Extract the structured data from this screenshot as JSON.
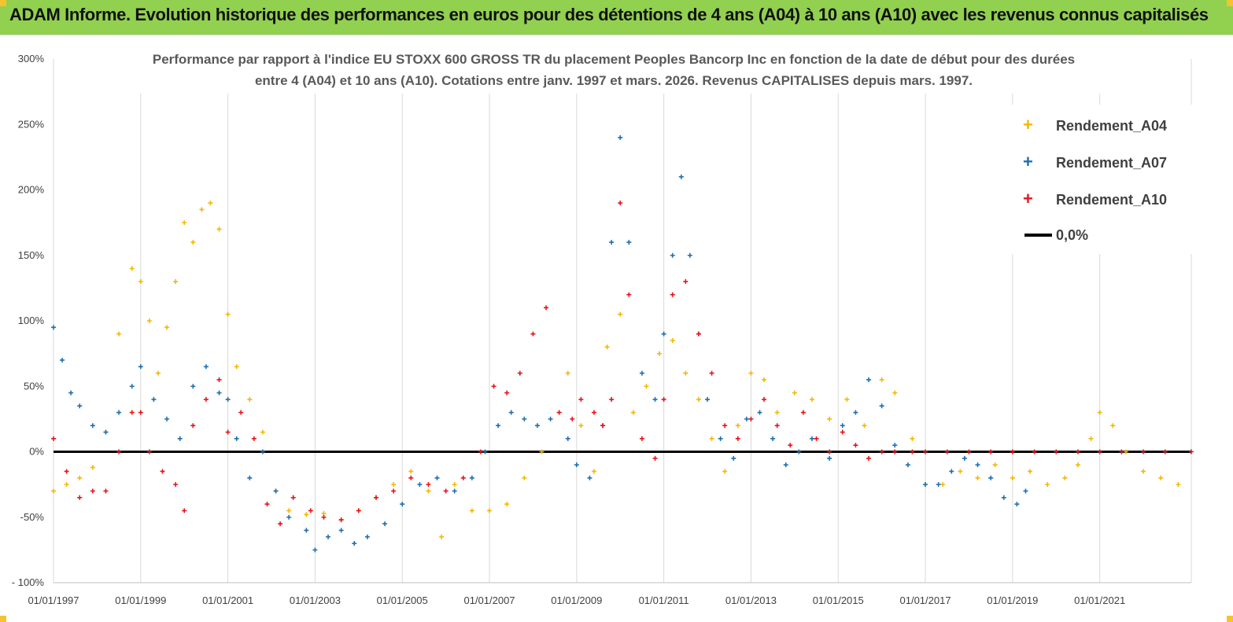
{
  "header": {
    "title": "ADAM Informe. Evolution historique des performances en euros pour des détentions de 4 ans (A04) à 10 ans (A10) avec les revenus connus capitalisés"
  },
  "colors": {
    "header_bg": "#92d050",
    "a04": "#f5b800",
    "a07": "#1f6fb4",
    "a10": "#e8141c",
    "zero_line": "#000000",
    "grid": "#d9d9d9"
  },
  "chart_data": {
    "type": "scatter",
    "title_lines": [
      "Performance par rapport à l'indice EU STOXX 600 GROSS TR  du placement Peoples Bancorp Inc en fonction de la date de début pour des durées",
      "entre 4 (A04) et 10 ans (A10). Cotations entre janv. 1997 et mars. 2026. Revenus CAPITALISES depuis mars. 1997."
    ],
    "xlabel": "",
    "ylabel": "",
    "x_range": [
      1997.0,
      2023.1
    ],
    "ylim": [
      -100,
      300
    ],
    "y_ticks": [
      -100,
      -50,
      0,
      50,
      100,
      150,
      200,
      250,
      300
    ],
    "y_tick_labels": [
      "- 100%",
      "-50%",
      "0%",
      "50%",
      "100%",
      "150%",
      "200%",
      "250%",
      "300%"
    ],
    "x_ticks": [
      1997,
      1999,
      2001,
      2003,
      2005,
      2007,
      2009,
      2011,
      2013,
      2015,
      2017,
      2019,
      2021
    ],
    "x_tick_labels": [
      "01/01/1997",
      "01/01/1999",
      "01/01/2001",
      "01/01/2003",
      "01/01/2005",
      "01/01/2007",
      "01/01/2009",
      "01/01/2011",
      "01/01/2013",
      "01/01/2015",
      "01/01/2017",
      "01/01/2019",
      "01/01/2021"
    ],
    "grid": "vertical",
    "legend_position": "top-right",
    "legend": [
      "Rendement_A04",
      "Rendement_A07",
      "Rendement_A10",
      "0,0%"
    ],
    "series": [
      {
        "name": "Rendement_A04",
        "x": [
          1997.0,
          1997.3,
          1997.6,
          1997.9,
          1998.2,
          1998.5,
          1998.8,
          1999.0,
          1999.2,
          1999.4,
          1999.6,
          1999.8,
          2000.0,
          2000.2,
          2000.4,
          2000.6,
          2000.8,
          2001.0,
          2001.2,
          2001.5,
          2001.8,
          2002.1,
          2002.4,
          2002.8,
          2003.2,
          2003.6,
          2004.0,
          2004.4,
          2004.8,
          2005.2,
          2005.6,
          2005.9,
          2006.2,
          2006.6,
          2007.0,
          2007.4,
          2007.8,
          2008.2,
          2008.6,
          2008.8,
          2009.1,
          2009.4,
          2009.7,
          2010.0,
          2010.3,
          2010.6,
          2010.9,
          2011.2,
          2011.5,
          2011.8,
          2012.1,
          2012.4,
          2012.7,
          2013.0,
          2013.3,
          2013.6,
          2014.0,
          2014.4,
          2014.8,
          2015.2,
          2015.6,
          2016.0,
          2016.3,
          2016.7,
          2017.0,
          2017.4,
          2017.8,
          2018.2,
          2018.6,
          2019.0,
          2019.4,
          2019.8,
          2020.2,
          2020.5,
          2020.8,
          2021.0,
          2021.3,
          2021.6,
          2022.0,
          2022.4,
          2022.8
        ],
        "values": [
          -30,
          -25,
          -20,
          -12,
          15,
          90,
          140,
          130,
          100,
          60,
          95,
          130,
          175,
          160,
          185,
          190,
          170,
          105,
          65,
          40,
          15,
          -30,
          -45,
          -48,
          -47,
          -52,
          -45,
          -35,
          -25,
          -15,
          -30,
          -65,
          -25,
          -45,
          -45,
          -40,
          -20,
          0,
          30,
          60,
          20,
          -15,
          80,
          105,
          30,
          50,
          75,
          85,
          60,
          40,
          10,
          -15,
          20,
          60,
          55,
          30,
          45,
          40,
          25,
          40,
          20,
          55,
          45,
          10,
          -25,
          -25,
          -15,
          -20,
          -10,
          -20,
          -15,
          -25,
          -20,
          -10,
          10,
          30,
          20,
          0,
          -15,
          -20,
          -25
        ]
      },
      {
        "name": "Rendement_A07",
        "x": [
          1997.0,
          1997.2,
          1997.4,
          1997.6,
          1997.9,
          1998.2,
          1998.5,
          1998.8,
          1999.0,
          1999.3,
          1999.6,
          1999.9,
          2000.2,
          2000.5,
          2000.8,
          2001.0,
          2001.2,
          2001.5,
          2001.8,
          2002.1,
          2002.4,
          2002.8,
          2003.0,
          2003.3,
          2003.6,
          2003.9,
          2004.2,
          2004.6,
          2005.0,
          2005.4,
          2005.8,
          2006.2,
          2006.6,
          2006.9,
          2007.2,
          2007.5,
          2007.8,
          2008.1,
          2008.4,
          2008.8,
          2009.0,
          2009.3,
          2009.6,
          2009.8,
          2010.0,
          2010.2,
          2010.5,
          2010.8,
          2011.0,
          2011.2,
          2011.4,
          2011.6,
          2011.8,
          2012.0,
          2012.3,
          2012.6,
          2012.9,
          2013.2,
          2013.5,
          2013.8,
          2014.1,
          2014.4,
          2014.8,
          2015.1,
          2015.4,
          2015.7,
          2016.0,
          2016.3,
          2016.6,
          2017.0,
          2017.3,
          2017.6,
          2017.9,
          2018.2,
          2018.5,
          2018.8,
          2019.1,
          2019.3
        ],
        "values": [
          95,
          70,
          45,
          35,
          20,
          15,
          30,
          50,
          65,
          40,
          25,
          10,
          50,
          65,
          45,
          40,
          10,
          -20,
          0,
          -30,
          -50,
          -60,
          -75,
          -65,
          -60,
          -70,
          -65,
          -55,
          -40,
          -25,
          -20,
          -30,
          -20,
          0,
          20,
          30,
          25,
          20,
          25,
          10,
          -10,
          -20,
          20,
          160,
          240,
          160,
          60,
          40,
          90,
          150,
          210,
          150,
          90,
          40,
          10,
          -5,
          25,
          30,
          10,
          -10,
          0,
          10,
          -5,
          20,
          30,
          55,
          35,
          5,
          -10,
          -25,
          -25,
          -15,
          -5,
          -10,
          -20,
          -35,
          -40,
          -30
        ]
      },
      {
        "name": "Rendement_A10",
        "x": [
          1997.0,
          1997.3,
          1997.6,
          1997.9,
          1998.2,
          1998.5,
          1998.8,
          1999.0,
          1999.2,
          1999.5,
          1999.8,
          2000.0,
          2000.2,
          2000.5,
          2000.8,
          2001.0,
          2001.3,
          2001.6,
          2001.9,
          2002.2,
          2002.5,
          2002.9,
          2003.2,
          2003.6,
          2004.0,
          2004.4,
          2004.8,
          2005.2,
          2005.6,
          2006.0,
          2006.4,
          2006.8,
          2007.1,
          2007.4,
          2007.7,
          2008.0,
          2008.3,
          2008.6,
          2008.9,
          2009.1,
          2009.4,
          2009.6,
          2009.8,
          2010.0,
          2010.2,
          2010.5,
          2010.8,
          2011.0,
          2011.2,
          2011.5,
          2011.8,
          2012.1,
          2012.4,
          2012.7,
          2013.0,
          2013.3,
          2013.6,
          2013.9,
          2014.2,
          2014.5,
          2014.8,
          2015.1,
          2015.4,
          2015.7,
          2016.0,
          2016.3,
          2016.7,
          2017.0,
          2017.5,
          2018.0,
          2018.5,
          2019.0,
          2019.5,
          2020.0,
          2020.5,
          2021.0,
          2021.5,
          2022.0,
          2022.5,
          2023.1
        ],
        "values": [
          10,
          -15,
          -35,
          -30,
          -30,
          0,
          30,
          30,
          0,
          -15,
          -25,
          -45,
          20,
          40,
          55,
          15,
          30,
          10,
          -40,
          -55,
          -35,
          -45,
          -50,
          -52,
          -45,
          -35,
          -30,
          -20,
          -25,
          -30,
          -20,
          0,
          50,
          45,
          60,
          90,
          110,
          30,
          25,
          40,
          30,
          20,
          40,
          190,
          120,
          10,
          -5,
          40,
          120,
          130,
          90,
          60,
          20,
          10,
          25,
          40,
          20,
          5,
          30,
          10,
          0,
          15,
          5,
          -5,
          0,
          0,
          0,
          0,
          0,
          0,
          0,
          0,
          0,
          0,
          0,
          0,
          0,
          0,
          0,
          0
        ]
      }
    ],
    "reference_line": {
      "name": "0,0%",
      "y": 0
    }
  }
}
